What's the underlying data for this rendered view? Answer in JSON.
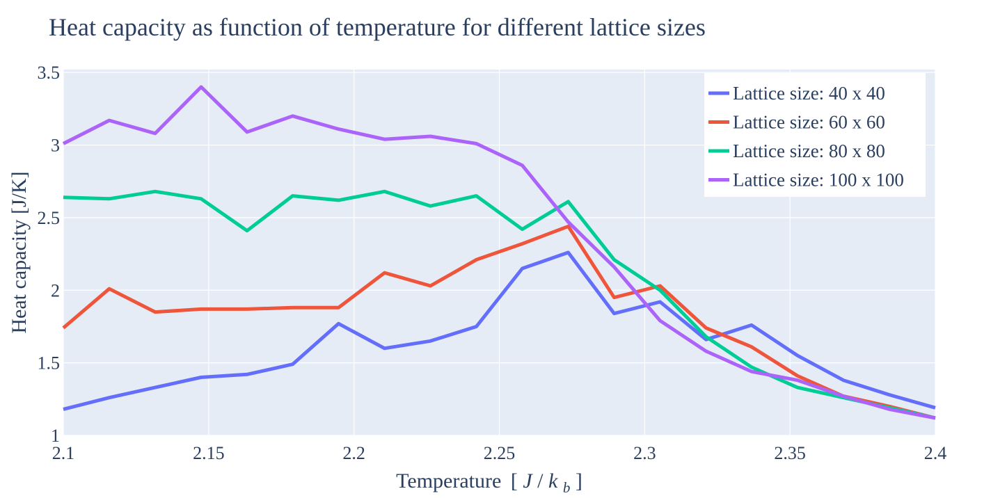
{
  "chart_data": {
    "type": "line",
    "title": "Heat capacity as function of temperature for different lattice sizes",
    "xlabel": "Temperature",
    "xlabel_unit_prefix": "[",
    "xlabel_unit_J": "J",
    "xlabel_unit_slash": "/",
    "xlabel_unit_k": "k",
    "xlabel_unit_sub": "b",
    "xlabel_unit_suffix": "]",
    "ylabel": "Heat capacity [J/K]",
    "xlim": [
      2.1,
      2.4
    ],
    "ylim": [
      1.0,
      3.52
    ],
    "xticks": [
      2.1,
      2.15,
      2.2,
      2.25,
      2.3,
      2.35,
      2.4
    ],
    "xtick_labels": [
      "2.1",
      "2.15",
      "2.2",
      "2.25",
      "2.3",
      "2.35",
      "2.4"
    ],
    "yticks": [
      1,
      1.5,
      2,
      2.5,
      3,
      3.5
    ],
    "ytick_labels": [
      "1",
      "1.5",
      "2",
      "2.5",
      "3",
      "3.5"
    ],
    "grid": true,
    "legend_position": "top-right",
    "x": [
      2.1,
      2.1158,
      2.1316,
      2.1474,
      2.1632,
      2.1789,
      2.1947,
      2.2105,
      2.2263,
      2.2421,
      2.2579,
      2.2737,
      2.2895,
      2.3053,
      2.3211,
      2.3368,
      2.3526,
      2.3684,
      2.3842,
      2.4
    ],
    "series": [
      {
        "name": "Lattice size: 40 x 40",
        "color": "#636efa",
        "values": [
          1.18,
          1.26,
          1.33,
          1.4,
          1.42,
          1.49,
          1.77,
          1.6,
          1.65,
          1.75,
          2.15,
          2.26,
          1.84,
          1.92,
          1.66,
          1.76,
          1.55,
          1.38,
          1.28,
          1.19
        ]
      },
      {
        "name": "Lattice size: 60 x 60",
        "color": "#ef553b",
        "values": [
          1.74,
          2.01,
          1.85,
          1.87,
          1.87,
          1.88,
          1.88,
          2.12,
          2.03,
          2.21,
          2.32,
          2.44,
          1.95,
          2.03,
          1.74,
          1.61,
          1.41,
          1.27,
          1.2,
          1.12
        ]
      },
      {
        "name": "Lattice size: 80 x 80",
        "color": "#00cc96",
        "values": [
          2.64,
          2.63,
          2.68,
          2.63,
          2.41,
          2.65,
          2.62,
          2.68,
          2.58,
          2.65,
          2.42,
          2.61,
          2.21,
          2.0,
          1.68,
          1.47,
          1.33,
          1.26,
          1.19,
          1.12
        ]
      },
      {
        "name": "Lattice size: 100 x 100",
        "color": "#ab63fa",
        "values": [
          3.01,
          3.17,
          3.08,
          3.4,
          3.09,
          3.2,
          3.11,
          3.04,
          3.06,
          3.01,
          2.86,
          2.47,
          2.16,
          1.79,
          1.58,
          1.44,
          1.38,
          1.27,
          1.18,
          1.12
        ]
      }
    ]
  }
}
